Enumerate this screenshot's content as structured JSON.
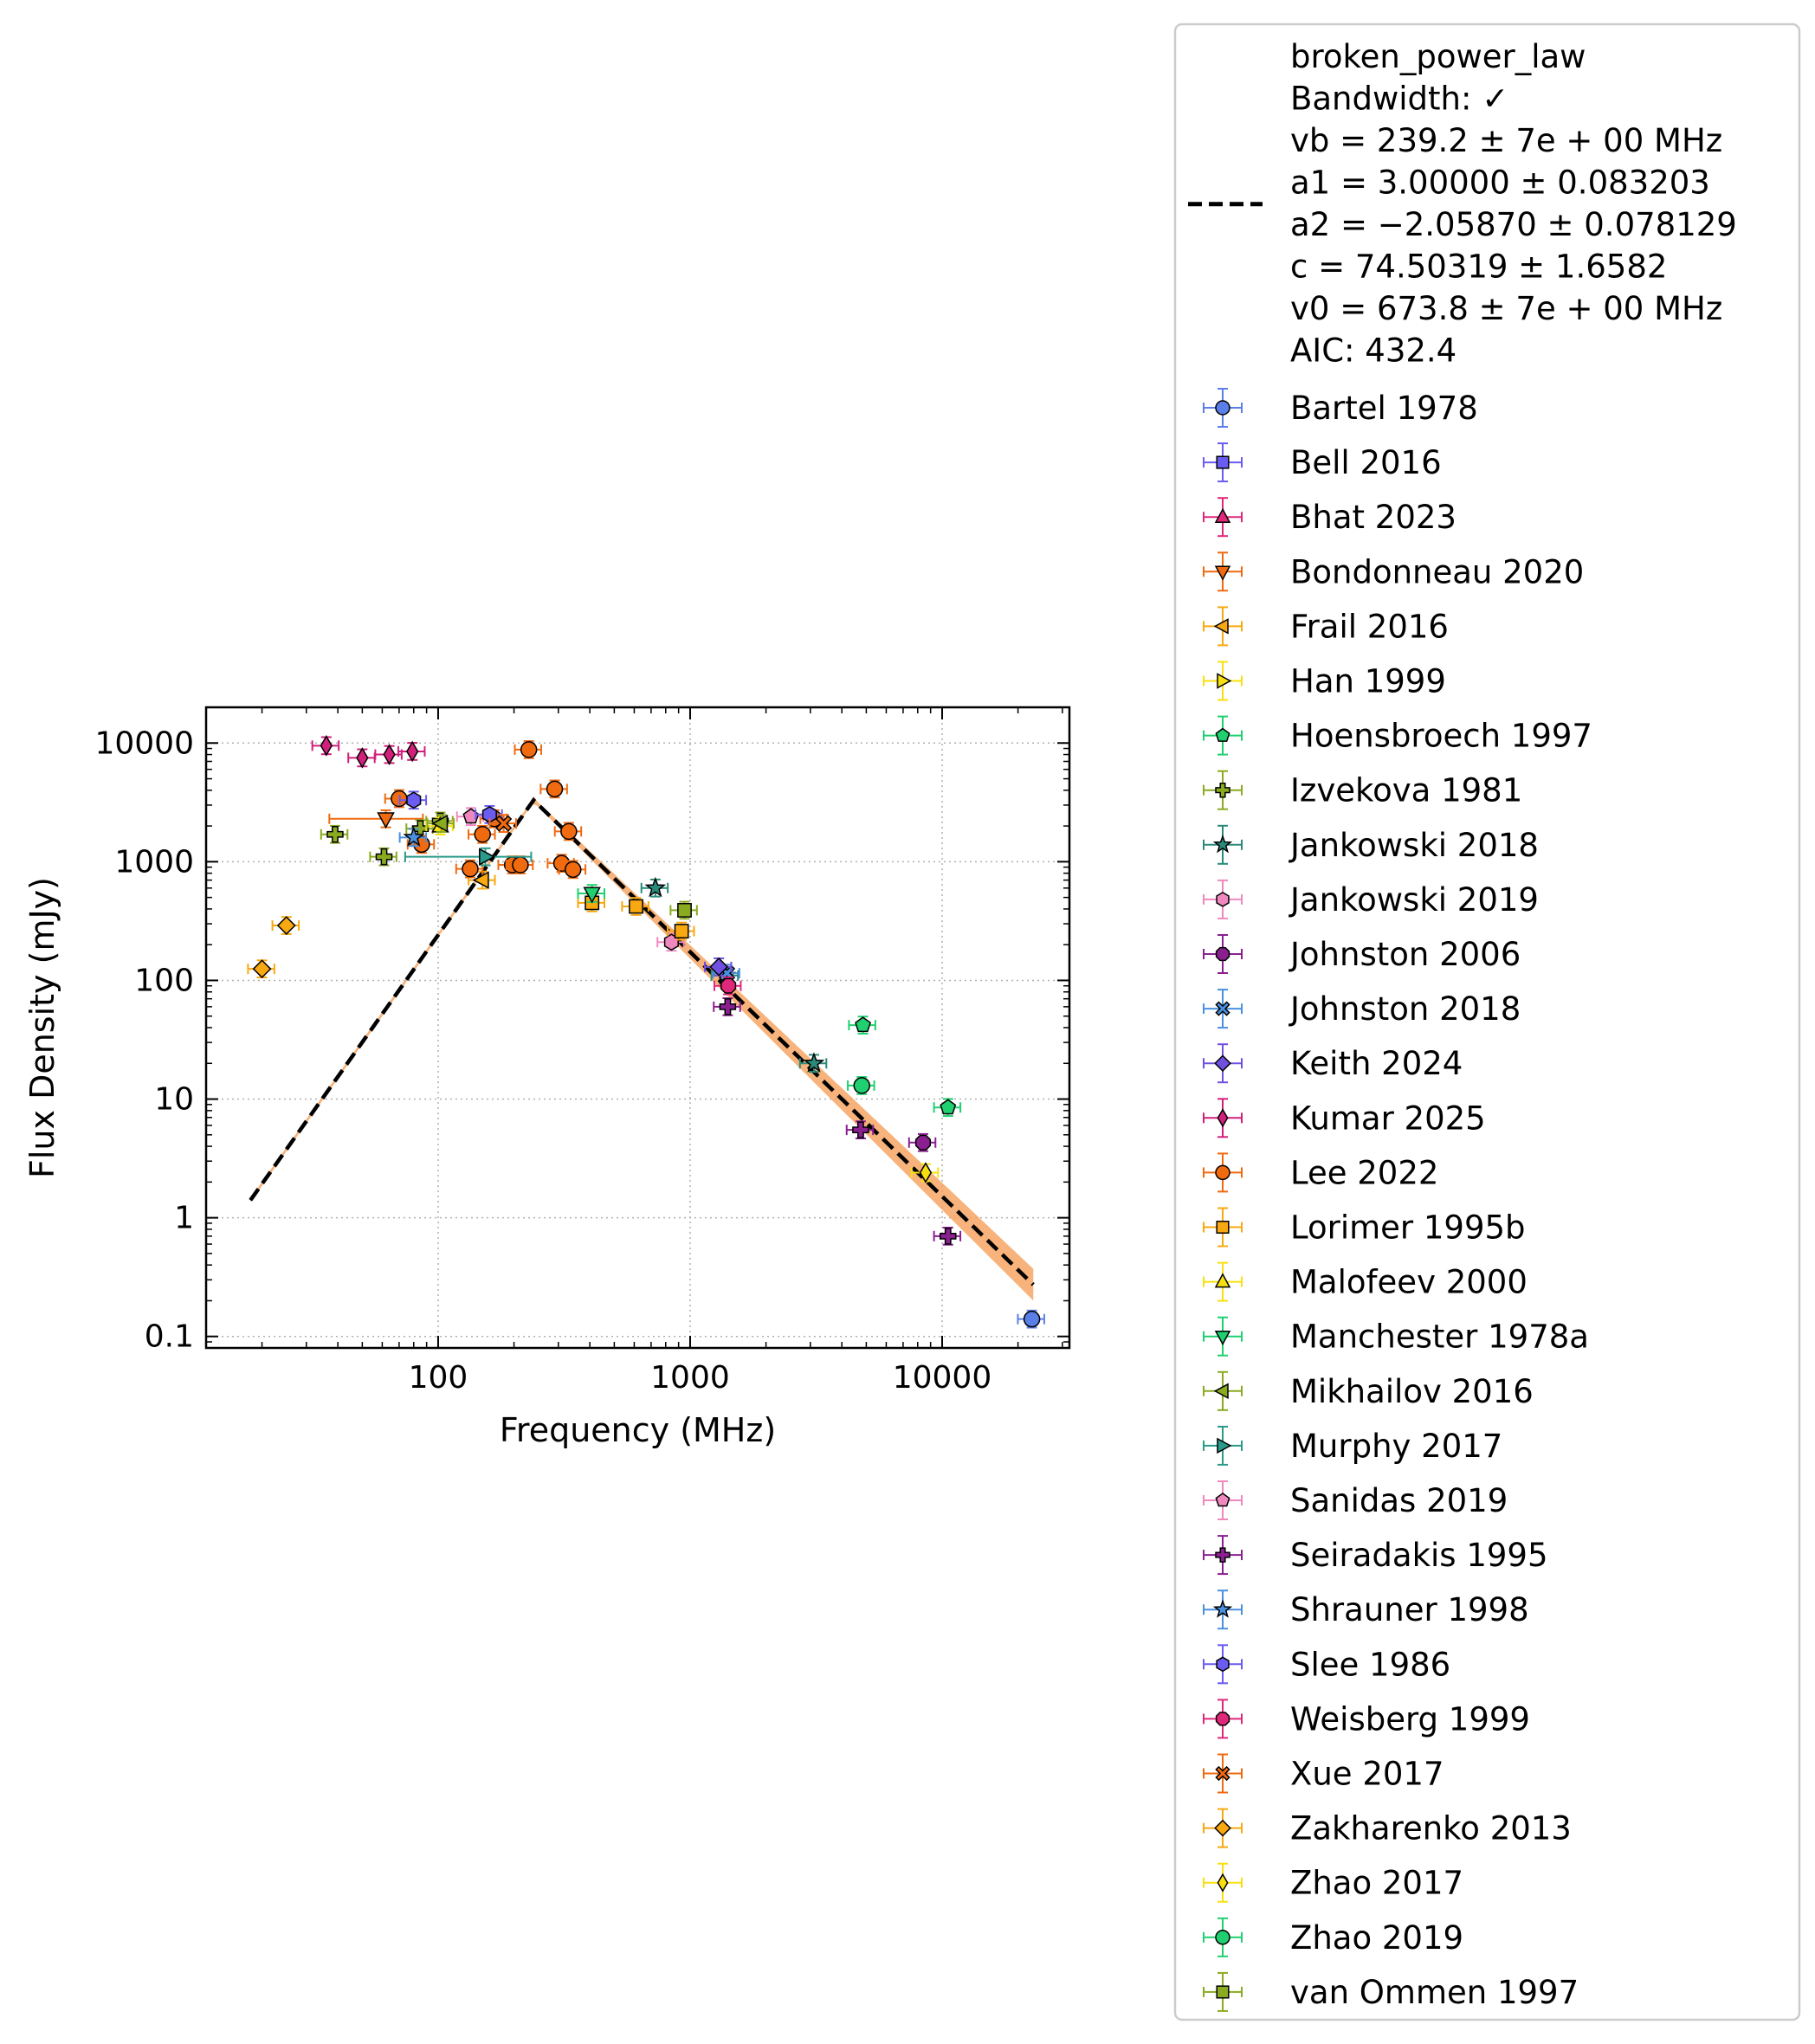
{
  "chart_data": {
    "type": "scatter",
    "xlabel": "Frequency (MHz)",
    "ylabel": "Flux Density (mJy)",
    "x_scale": "log",
    "y_scale": "log",
    "xlim": [
      12,
      32000
    ],
    "ylim": [
      0.08,
      20000
    ],
    "grid": true,
    "legend_placement": "outside-right",
    "x_ticks": [
      {
        "value": 100,
        "label": "100"
      },
      {
        "value": 1000,
        "label": "1000"
      },
      {
        "value": 10000,
        "label": "10000"
      }
    ],
    "y_ticks": [
      {
        "value": 0.1,
        "label": "0.1"
      },
      {
        "value": 1,
        "label": "1"
      },
      {
        "value": 10,
        "label": "10"
      },
      {
        "value": 100,
        "label": "100"
      },
      {
        "value": 1000,
        "label": "1000"
      },
      {
        "value": 10000,
        "label": "10000"
      }
    ],
    "fit": {
      "lines": [
        "broken_power_law",
        "Bandwidth: ✓",
        "vb = 239.2 ± 7e + 00 MHz",
        "a1 = 3.00000 ± 0.083203",
        "a2 = −2.05870 ± 0.078129",
        "c = 74.50319 ± 1.6582",
        "v0 = 673.8 ± 7e + 00 MHz",
        "AIC: 432.4"
      ],
      "x_range": [
        18,
        23000
      ],
      "vb": 239.2,
      "a1": 3.0,
      "a2": -2.0587,
      "peak_flux": 3300,
      "line_color": "#000000",
      "band_color": "#f5a05a"
    },
    "series": [
      {
        "name": "Bartel 1978",
        "marker": "circle",
        "color": "#5b7fe8",
        "points": [
          {
            "x": 22700,
            "y": 0.14
          }
        ]
      },
      {
        "name": "Bell 2016",
        "marker": "square",
        "color": "#6a5cf0",
        "points": []
      },
      {
        "name": "Bhat 2023",
        "marker": "triangle-up",
        "color": "#e0287a",
        "points": []
      },
      {
        "name": "Bondonneau 2020",
        "marker": "triangle-down",
        "color": "#f06a10",
        "points": [
          {
            "x": 62,
            "y": 2300,
            "xerr": 25
          }
        ]
      },
      {
        "name": "Frail 2016",
        "marker": "triangle-left",
        "color": "#f8a810",
        "points": [
          {
            "x": 150,
            "y": 700
          }
        ]
      },
      {
        "name": "Han 1999",
        "marker": "triangle-right",
        "color": "#f8e010",
        "points": []
      },
      {
        "name": "Hoensbroech 1997",
        "marker": "pentagon",
        "color": "#20d070",
        "points": [
          {
            "x": 4850,
            "y": 42
          },
          {
            "x": 10550,
            "y": 8.5
          }
        ]
      },
      {
        "name": "Izvekova 1981",
        "marker": "plus",
        "color": "#8aaa20",
        "points": [
          {
            "x": 39,
            "y": 1700
          },
          {
            "x": 61,
            "y": 1100
          },
          {
            "x": 85,
            "y": 1900
          },
          {
            "x": 102,
            "y": 2200
          }
        ]
      },
      {
        "name": "Jankowski 2018",
        "marker": "star",
        "color": "#2a8a7a",
        "points": [
          {
            "x": 728,
            "y": 600
          },
          {
            "x": 1382,
            "y": 110
          },
          {
            "x": 3100,
            "y": 20
          }
        ]
      },
      {
        "name": "Jankowski 2019",
        "marker": "hexagon",
        "color": "#f088c0",
        "points": [
          {
            "x": 843,
            "y": 210
          }
        ]
      },
      {
        "name": "Johnston 2006",
        "marker": "octagon",
        "color": "#8a2090",
        "points": [
          {
            "x": 8400,
            "y": 4.3
          }
        ]
      },
      {
        "name": "Johnston 2018",
        "marker": "x",
        "color": "#4a90e0",
        "points": [
          {
            "x": 1400,
            "y": 115
          }
        ]
      },
      {
        "name": "Keith 2024",
        "marker": "diamond",
        "color": "#7050e0",
        "points": [
          {
            "x": 1300,
            "y": 130
          }
        ]
      },
      {
        "name": "Kumar 2025",
        "marker": "thin-diamond",
        "color": "#d0207a",
        "points": [
          {
            "x": 36,
            "y": 9500
          },
          {
            "x": 50,
            "y": 7500
          },
          {
            "x": 64,
            "y": 8000
          },
          {
            "x": 79,
            "y": 8500
          }
        ]
      },
      {
        "name": "Lee 2022",
        "marker": "circle",
        "color": "#f06a10",
        "points": [
          {
            "x": 70,
            "y": 3400
          },
          {
            "x": 86,
            "y": 1400
          },
          {
            "x": 134,
            "y": 870
          },
          {
            "x": 150,
            "y": 1700
          },
          {
            "x": 167,
            "y": 2300
          },
          {
            "x": 197,
            "y": 940
          },
          {
            "x": 212,
            "y": 940
          },
          {
            "x": 229,
            "y": 8800
          },
          {
            "x": 290,
            "y": 4100
          },
          {
            "x": 309,
            "y": 970
          },
          {
            "x": 330,
            "y": 1800
          },
          {
            "x": 343,
            "y": 860
          }
        ]
      },
      {
        "name": "Lorimer 1995b",
        "marker": "square",
        "color": "#f8a810",
        "points": [
          {
            "x": 408,
            "y": 450
          },
          {
            "x": 610,
            "y": 420
          },
          {
            "x": 925,
            "y": 260
          }
        ]
      },
      {
        "name": "Malofeev 2000",
        "marker": "triangle-up",
        "color": "#f8e010",
        "points": [
          {
            "x": 102,
            "y": 2000
          }
        ]
      },
      {
        "name": "Manchester 1978a",
        "marker": "triangle-down",
        "color": "#20d070",
        "points": [
          {
            "x": 408,
            "y": 540
          }
        ]
      },
      {
        "name": "Mikhailov 2016",
        "marker": "triangle-left",
        "color": "#8aaa20",
        "points": [
          {
            "x": 103,
            "y": 2100
          }
        ]
      },
      {
        "name": "Murphy 2017",
        "marker": "triangle-right",
        "color": "#2a9a8a",
        "points": [
          {
            "x": 154,
            "y": 1100,
            "xerr": 80
          }
        ]
      },
      {
        "name": "Sanidas 2019",
        "marker": "pentagon",
        "color": "#f088c0",
        "points": [
          {
            "x": 135,
            "y": 2400
          }
        ]
      },
      {
        "name": "Seiradakis 1995",
        "marker": "plus",
        "color": "#8a2090",
        "points": [
          {
            "x": 1410,
            "y": 60
          },
          {
            "x": 4750,
            "y": 5.5
          },
          {
            "x": 10550,
            "y": 0.7
          }
        ]
      },
      {
        "name": "Shrauner 1998",
        "marker": "star",
        "color": "#4a90e0",
        "points": [
          {
            "x": 80,
            "y": 1600
          }
        ]
      },
      {
        "name": "Slee 1986",
        "marker": "hexagon",
        "color": "#6a5cf0",
        "points": [
          {
            "x": 80,
            "y": 3300
          },
          {
            "x": 160,
            "y": 2500
          }
        ]
      },
      {
        "name": "Weisberg 1999",
        "marker": "octagon",
        "color": "#e0287a",
        "points": [
          {
            "x": 1418,
            "y": 90
          }
        ]
      },
      {
        "name": "Xue 2017",
        "marker": "x",
        "color": "#f06a10",
        "points": [
          {
            "x": 182,
            "y": 2100
          }
        ]
      },
      {
        "name": "Zakharenko 2013",
        "marker": "diamond",
        "color": "#f8a810",
        "points": [
          {
            "x": 20,
            "y": 125
          },
          {
            "x": 25,
            "y": 290
          }
        ]
      },
      {
        "name": "Zhao 2017",
        "marker": "thin-diamond",
        "color": "#f8e010",
        "points": [
          {
            "x": 8600,
            "y": 2.4
          }
        ]
      },
      {
        "name": "Zhao 2019",
        "marker": "circle",
        "color": "#20d070",
        "points": [
          {
            "x": 4800,
            "y": 13
          }
        ]
      },
      {
        "name": "van Ommen 1997",
        "marker": "square",
        "color": "#8aaa20",
        "points": [
          {
            "x": 950,
            "y": 390
          }
        ]
      }
    ]
  }
}
